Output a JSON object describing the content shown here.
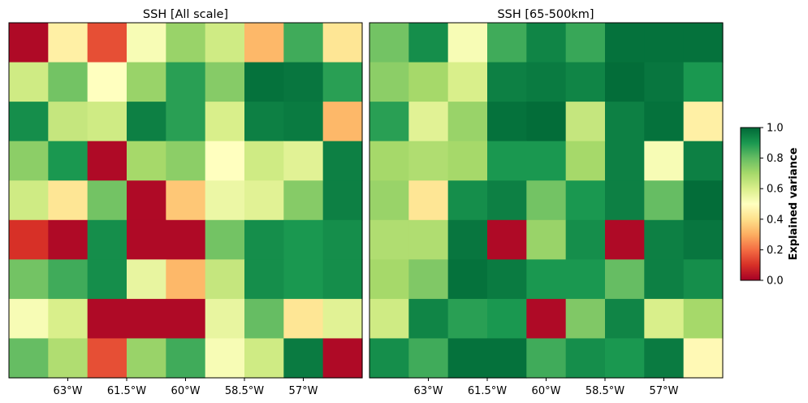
{
  "chart_data": [
    {
      "type": "heatmap",
      "title": "SSH [All scale]",
      "x_ticks": [
        "63°W",
        "61.5°W",
        "60°W",
        "58.5°W",
        "57°W"
      ],
      "x_tick_values": [
        -63,
        -61.5,
        -60,
        -58.5,
        -57
      ],
      "xlim": [
        -64.5,
        -55.5
      ],
      "values": [
        [
          0.02,
          0.45,
          0.15,
          0.52,
          0.72,
          0.62,
          0.32,
          0.85,
          0.42
        ],
        [
          0.62,
          0.78,
          0.5,
          0.72,
          0.88,
          0.75,
          0.98,
          0.97,
          0.88
        ],
        [
          0.92,
          0.64,
          0.62,
          0.95,
          0.88,
          0.6,
          0.95,
          0.96,
          0.32
        ],
        [
          0.74,
          0.9,
          0.02,
          0.7,
          0.74,
          0.5,
          0.62,
          0.58,
          0.95
        ],
        [
          0.62,
          0.42,
          0.78,
          0.02,
          0.35,
          0.55,
          0.58,
          0.75,
          0.95
        ],
        [
          0.1,
          0.02,
          0.92,
          0.02,
          0.02,
          0.78,
          0.92,
          0.9,
          0.92
        ],
        [
          0.78,
          0.85,
          0.92,
          0.56,
          0.32,
          0.64,
          0.92,
          0.9,
          0.92
        ],
        [
          0.52,
          0.6,
          0.02,
          0.02,
          0.02,
          0.56,
          0.8,
          0.42,
          0.58
        ],
        [
          0.8,
          0.68,
          0.15,
          0.72,
          0.85,
          0.52,
          0.62,
          0.96,
          0.02
        ]
      ]
    },
    {
      "type": "heatmap",
      "title": "SSH [65-500km]",
      "x_ticks": [
        "63°W",
        "61.5°W",
        "60°W",
        "58.5°W",
        "57°W"
      ],
      "x_tick_values": [
        -63,
        -61.5,
        -60,
        -58.5,
        -57
      ],
      "xlim": [
        -64.5,
        -55.5
      ],
      "values": [
        [
          0.78,
          0.92,
          0.52,
          0.85,
          0.94,
          0.86,
          0.98,
          0.98,
          0.98
        ],
        [
          0.74,
          0.7,
          0.6,
          0.95,
          0.96,
          0.94,
          0.99,
          0.97,
          0.9
        ],
        [
          0.88,
          0.58,
          0.72,
          0.98,
          0.99,
          0.64,
          0.95,
          0.98,
          0.45
        ],
        [
          0.7,
          0.68,
          0.7,
          0.9,
          0.9,
          0.7,
          0.95,
          0.52,
          0.95
        ],
        [
          0.72,
          0.42,
          0.92,
          0.95,
          0.78,
          0.9,
          0.95,
          0.8,
          0.99
        ],
        [
          0.68,
          0.68,
          0.97,
          0.02,
          0.72,
          0.92,
          0.02,
          0.95,
          0.97
        ],
        [
          0.7,
          0.76,
          0.98,
          0.96,
          0.9,
          0.9,
          0.8,
          0.95,
          0.92
        ],
        [
          0.62,
          0.94,
          0.88,
          0.9,
          0.02,
          0.76,
          0.94,
          0.6,
          0.7
        ],
        [
          0.92,
          0.85,
          0.98,
          0.98,
          0.85,
          0.92,
          0.9,
          0.96,
          0.48
        ]
      ]
    }
  ],
  "colorbar": {
    "label": "Explained variance",
    "range": [
      0,
      1
    ],
    "ticks": [
      "0.0",
      "0.2",
      "0.4",
      "0.6",
      "0.8",
      "1.0"
    ],
    "tick_values": [
      0,
      0.2,
      0.4,
      0.6,
      0.8,
      1.0
    ],
    "colormap": "RdYlGn",
    "colormap_stops": [
      "#a50026",
      "#d73027",
      "#f46d43",
      "#fdae61",
      "#fee08b",
      "#ffffbf",
      "#d9ef8b",
      "#a6d96a",
      "#66bd63",
      "#1a9850",
      "#006837"
    ]
  }
}
